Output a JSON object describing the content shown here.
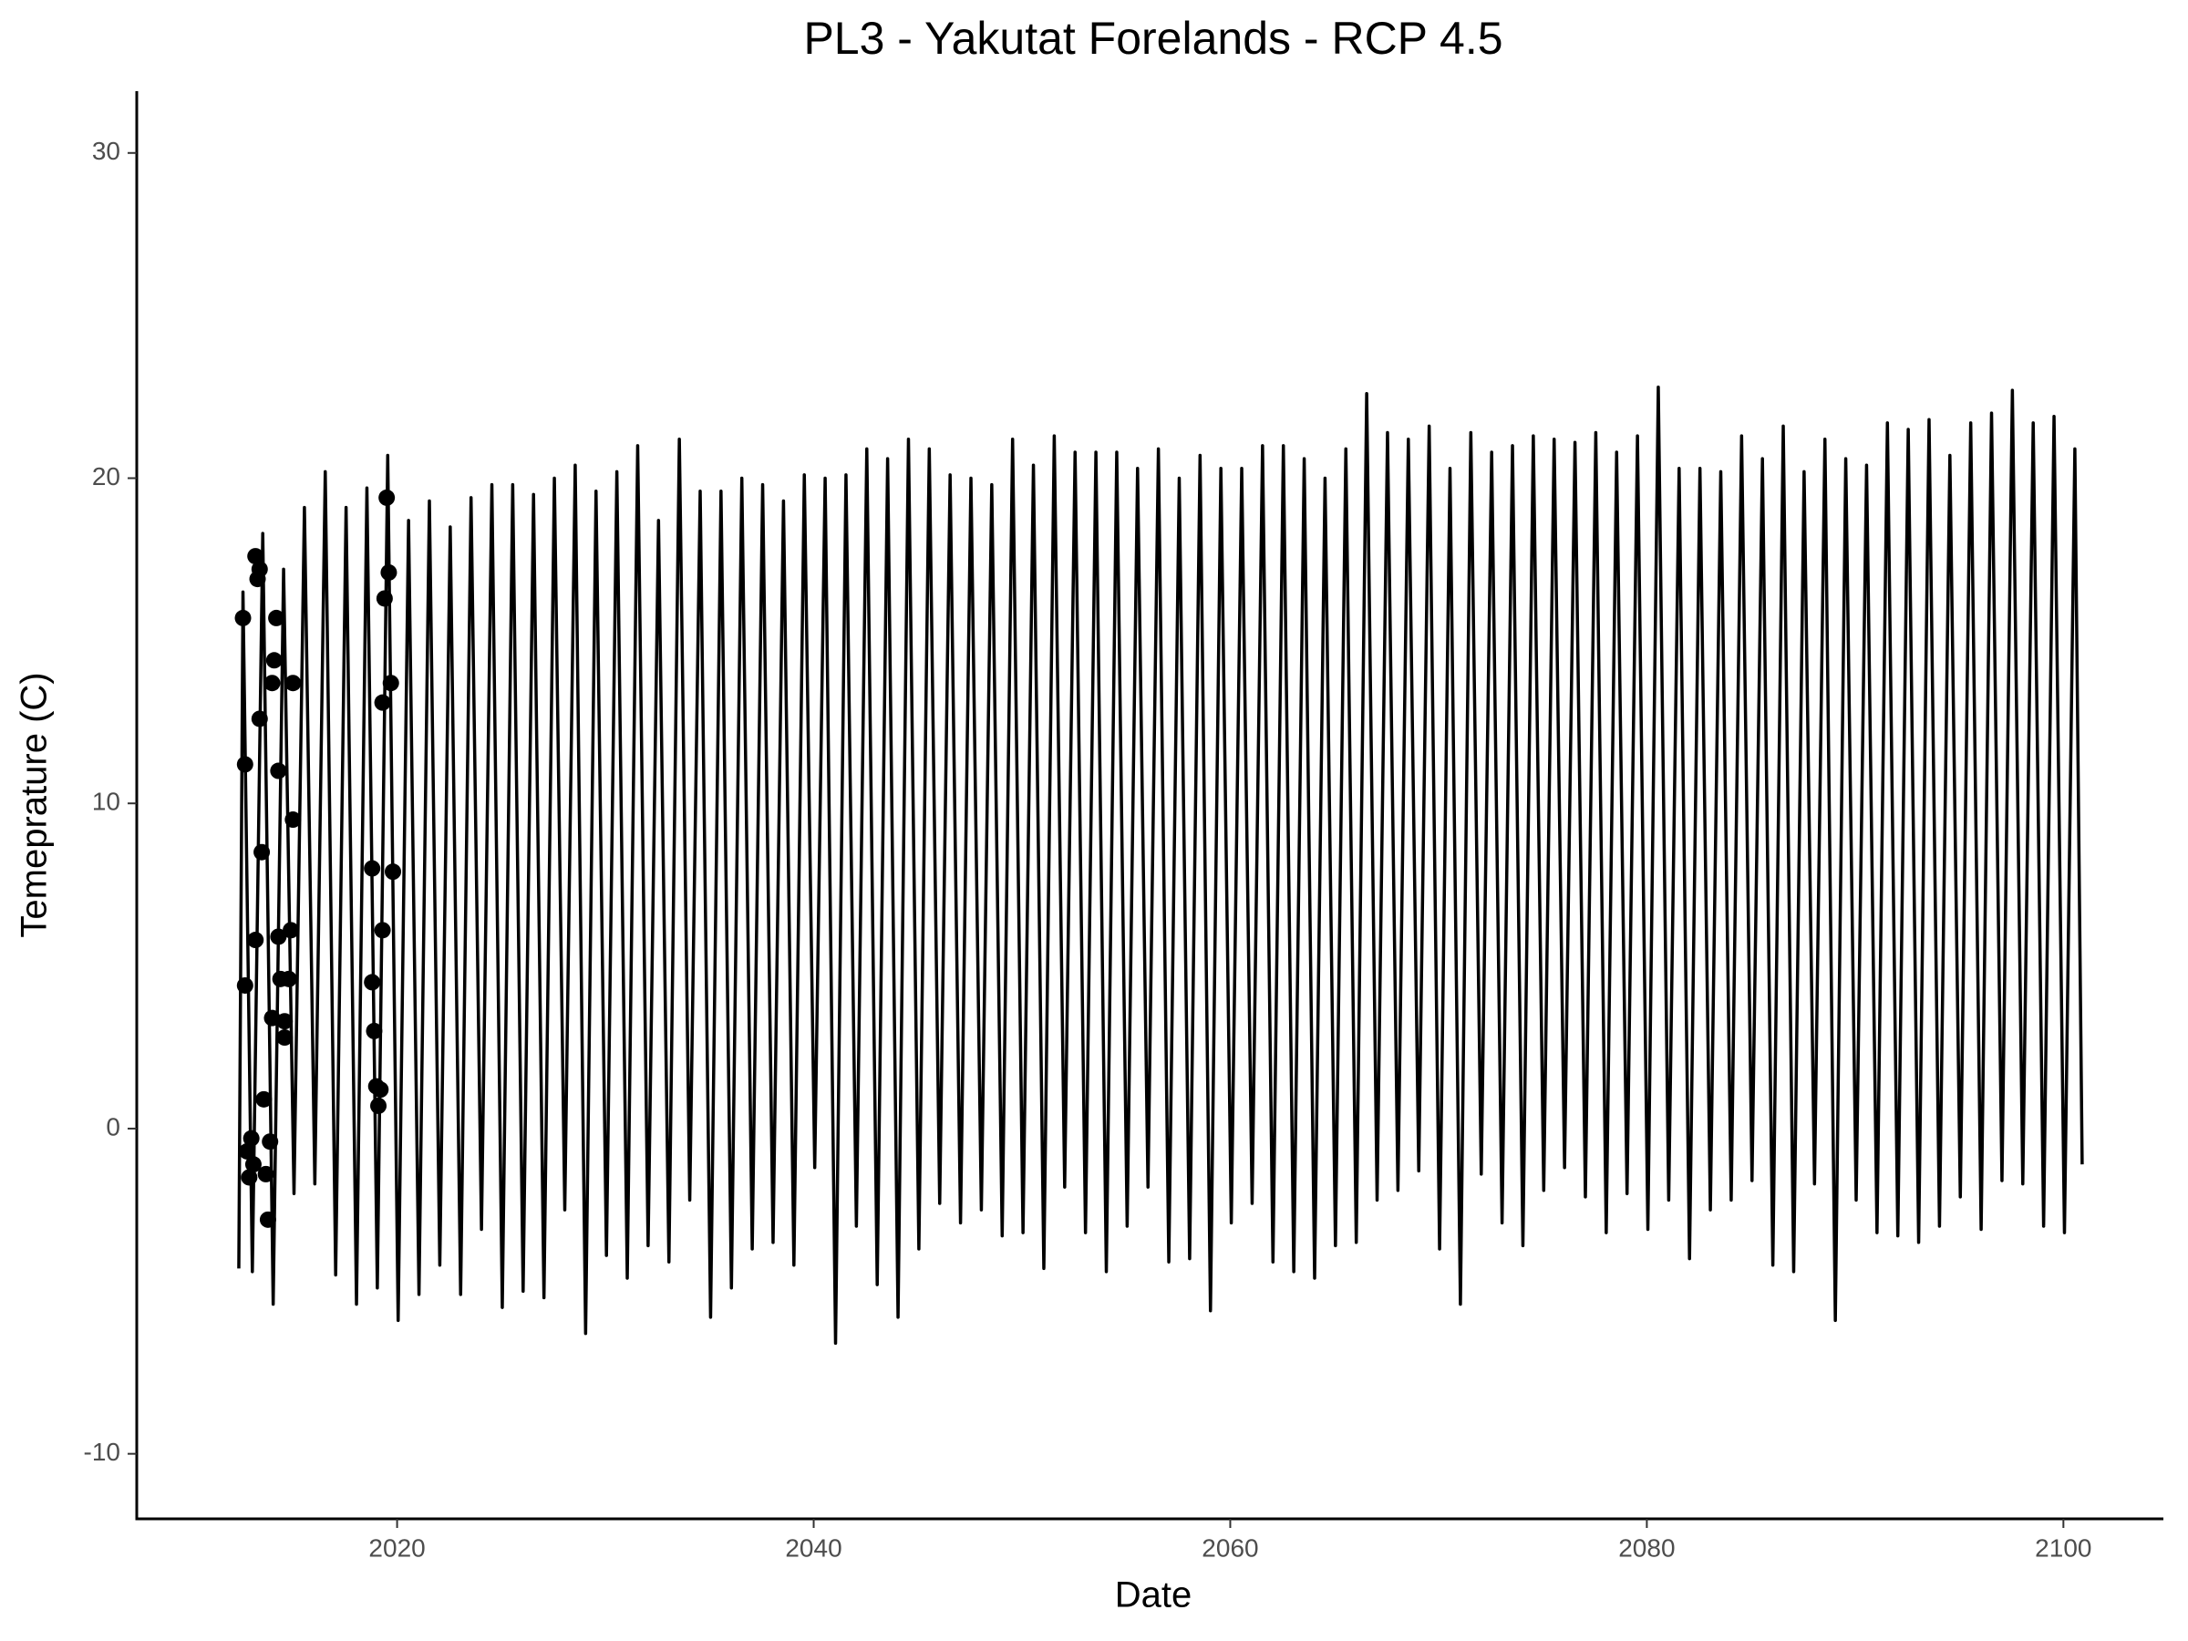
{
  "chart_data": {
    "type": "line",
    "title": "PL3 - Yakutat Forelands - RCP 4.5",
    "x_label": "Date",
    "y_label": "Temeprature (C)",
    "xlim": [
      2007.5,
      2104.8
    ],
    "ylim": [
      -12,
      31.9
    ],
    "xticks": [
      2020,
      2040,
      2060,
      2080,
      2100
    ],
    "yticks": [
      -10,
      0,
      10,
      20,
      30
    ],
    "grid": false,
    "series": [
      {
        "type": "line",
        "color": "#000000",
        "x": [
          2012.4,
          2012.6,
          2013.05,
          2013.55,
          2014.05,
          2014.55,
          2015.05,
          2015.55,
          2016.05,
          2016.55,
          2017.05,
          2017.55,
          2018.05,
          2018.55,
          2019.05,
          2019.55,
          2020.05,
          2020.55,
          2021.05,
          2021.55,
          2022.05,
          2022.55,
          2023.05,
          2023.55,
          2024.05,
          2024.55,
          2025.05,
          2025.55,
          2026.05,
          2026.55,
          2027.05,
          2027.55,
          2028.05,
          2028.55,
          2029.05,
          2029.55,
          2030.05,
          2030.55,
          2031.05,
          2031.55,
          2032.05,
          2032.55,
          2033.05,
          2033.55,
          2034.05,
          2034.55,
          2035.05,
          2035.55,
          2036.05,
          2036.55,
          2037.05,
          2037.55,
          2038.05,
          2038.55,
          2039.05,
          2039.55,
          2040.05,
          2040.55,
          2041.05,
          2041.55,
          2042.05,
          2042.55,
          2043.05,
          2043.55,
          2044.05,
          2044.55,
          2045.05,
          2045.55,
          2046.05,
          2046.55,
          2047.05,
          2047.55,
          2048.05,
          2048.55,
          2049.05,
          2049.55,
          2050.05,
          2050.55,
          2051.05,
          2051.55,
          2052.05,
          2052.55,
          2053.05,
          2053.55,
          2054.05,
          2054.55,
          2055.05,
          2055.55,
          2056.05,
          2056.55,
          2057.05,
          2057.55,
          2058.05,
          2058.55,
          2059.05,
          2059.55,
          2060.05,
          2060.55,
          2061.05,
          2061.55,
          2062.05,
          2062.55,
          2063.05,
          2063.55,
          2064.05,
          2064.55,
          2065.05,
          2065.55,
          2066.05,
          2066.55,
          2067.05,
          2067.55,
          2068.05,
          2068.55,
          2069.05,
          2069.55,
          2070.05,
          2070.55,
          2071.05,
          2071.55,
          2072.05,
          2072.55,
          2073.05,
          2073.55,
          2074.05,
          2074.55,
          2075.05,
          2075.55,
          2076.05,
          2076.55,
          2077.05,
          2077.55,
          2078.05,
          2078.55,
          2079.05,
          2079.55,
          2080.05,
          2080.55,
          2081.05,
          2081.55,
          2082.05,
          2082.55,
          2083.05,
          2083.55,
          2084.05,
          2084.55,
          2085.05,
          2085.55,
          2086.05,
          2086.55,
          2087.05,
          2087.55,
          2088.05,
          2088.55,
          2089.05,
          2089.55,
          2090.05,
          2090.55,
          2091.05,
          2091.55,
          2092.05,
          2092.55,
          2093.05,
          2093.55,
          2094.05,
          2094.55,
          2095.05,
          2095.55,
          2096.05,
          2096.55,
          2097.05,
          2097.55,
          2098.05,
          2098.55,
          2099.05,
          2099.55,
          2100.05,
          2100.55,
          2100.9
        ],
        "values": [
          -4.3,
          16.5,
          -4.4,
          18.3,
          -5.4,
          17.2,
          -2,
          19.1,
          -1.7,
          20.2,
          -4.5,
          19.1,
          -5.4,
          19.7,
          -4.9,
          20.7,
          -5.9,
          18.7,
          -5.1,
          19.3,
          -4.2,
          18.5,
          -5.1,
          19.4,
          -3.1,
          19.8,
          -5.5,
          19.8,
          -5.0,
          19.5,
          -5.2,
          20.0,
          -2.5,
          20.4,
          -6.3,
          19.6,
          -3.9,
          20.2,
          -4.6,
          21.0,
          -3.6,
          18.7,
          -4.1,
          21.2,
          -2.2,
          19.6,
          -5.8,
          19.6,
          -4.9,
          20.0,
          -3.7,
          19.8,
          -3.5,
          19.3,
          -4.2,
          20.1,
          -1.2,
          20.0,
          -6.6,
          20.1,
          -3.0,
          20.9,
          -4.8,
          20.6,
          -5.8,
          21.2,
          -3.7,
          20.9,
          -2.3,
          20.1,
          -2.9,
          20.0,
          -2.5,
          19.8,
          -3.3,
          21.2,
          -3.2,
          20.4,
          -4.3,
          21.3,
          -1.8,
          20.8,
          -3.2,
          20.8,
          -4.4,
          20.8,
          -3.0,
          20.3,
          -1.8,
          20.9,
          -4.1,
          20.0,
          -4.0,
          20.7,
          -5.6,
          20.3,
          -2.9,
          20.3,
          -2.3,
          21.0,
          -4.1,
          21.0,
          -4.4,
          20.6,
          -4.6,
          20.0,
          -3.6,
          20.9,
          -3.5,
          22.6,
          -2.2,
          21.4,
          -1.9,
          21.2,
          -1.3,
          21.6,
          -3.7,
          20.3,
          -5.4,
          21.4,
          -1.4,
          20.8,
          -2.9,
          21.0,
          -3.6,
          21.3,
          -1.9,
          21.2,
          -1.2,
          21.1,
          -2.1,
          21.4,
          -3.2,
          20.8,
          -2.0,
          21.3,
          -3.1,
          22.8,
          -2.2,
          20.3,
          -4.0,
          20.3,
          -2.5,
          20.2,
          -2.2,
          21.3,
          -1.6,
          20.6,
          -4.2,
          21.6,
          -4.4,
          20.2,
          -1.7,
          21.2,
          -5.9,
          20.6,
          -2.2,
          20.4,
          -3.2,
          21.7,
          -3.3,
          21.5,
          -3.5,
          21.8,
          -3.0,
          20.7,
          -2.1,
          21.7,
          -3.1,
          22.0,
          -1.6,
          22.7,
          -1.7,
          21.7,
          -3.0,
          21.9,
          -3.2,
          20.9,
          -1.1
        ]
      },
      {
        "type": "scatter",
        "color": "#000000",
        "x": [
          2012.6,
          2012.7,
          2012.7,
          2012.8,
          2012.9,
          2013.0,
          2013.1,
          2013.2,
          2013.2,
          2013.3,
          2013.4,
          2013.4,
          2013.5,
          2013.6,
          2013.7,
          2013.8,
          2013.9,
          2014.0,
          2014.0,
          2014.1,
          2014.2,
          2014.3,
          2014.3,
          2014.4,
          2014.6,
          2014.6,
          2014.8,
          2014.9,
          2015.0,
          2015.0,
          2018.8,
          2018.8,
          2018.9,
          2019.0,
          2019.1,
          2019.2,
          2019.3,
          2019.3,
          2019.4,
          2019.5,
          2019.6,
          2019.7,
          2019.8
        ],
        "values": [
          15.7,
          11.2,
          4.4,
          -0.7,
          -1.5,
          -0.3,
          -1.1,
          5.8,
          17.6,
          16.9,
          17.2,
          12.6,
          8.5,
          0.9,
          -1.4,
          -2.8,
          -0.4,
          3.4,
          13.7,
          14.4,
          15.7,
          11.0,
          5.9,
          4.6,
          3.3,
          2.8,
          4.6,
          6.1,
          9.5,
          13.7,
          8.0,
          4.5,
          3.0,
          1.3,
          0.7,
          1.2,
          6.1,
          13.1,
          16.3,
          19.4,
          17.1,
          13.7,
          7.9
        ]
      }
    ]
  }
}
